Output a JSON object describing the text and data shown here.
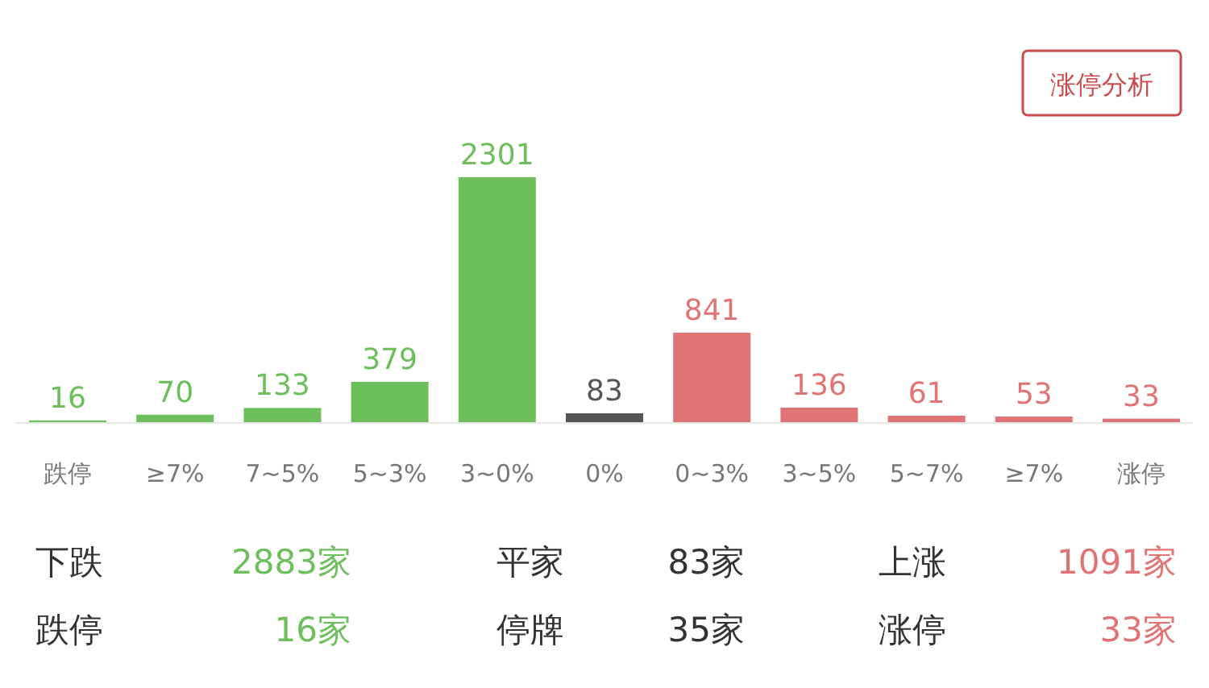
{
  "chart_data": {
    "type": "bar",
    "categories": [
      "跌停",
      "≥7%",
      "7~5%",
      "5~3%",
      "3~0%",
      "0%",
      "0~3%",
      "3~5%",
      "5~7%",
      "≥7%",
      "涨停"
    ],
    "values": [
      16,
      70,
      133,
      379,
      2301,
      83,
      841,
      136,
      61,
      53,
      33
    ],
    "colors": [
      "#6cbf5a",
      "#6cbf5a",
      "#6cbf5a",
      "#6cbf5a",
      "#6cbf5a",
      "#555555",
      "#e07474",
      "#e07474",
      "#e07474",
      "#e07474",
      "#e07474"
    ],
    "data_labels": true,
    "annotations": [
      "涨停分析",
      "下跌",
      "2883家",
      "平家",
      "83家",
      "上涨",
      "1091家",
      "跌停",
      "16家",
      "停牌",
      "35家",
      "涨停",
      "33家"
    ]
  }
}
